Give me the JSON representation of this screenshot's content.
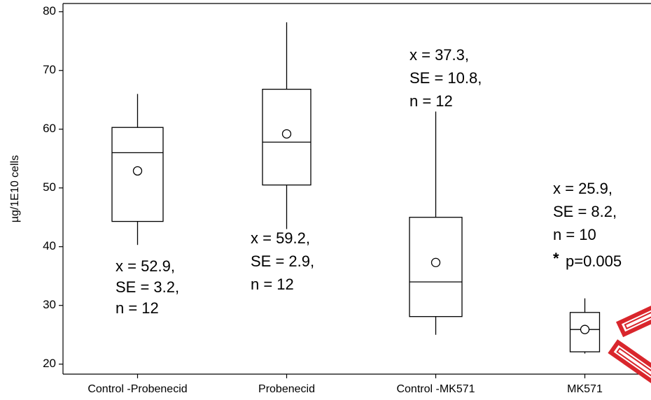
{
  "chart_data": {
    "type": "box",
    "y_label": "µg/1E10 cells",
    "categories": [
      "Control -Probenecid",
      "Probenecid",
      "Control -MK571",
      "MK571"
    ],
    "boxes": [
      {
        "whisker_low": 40.3,
        "q1": 44.3,
        "median": 56,
        "q3": 60.3,
        "whisker_high": 66,
        "mean": 52.9
      },
      {
        "whisker_low": 43,
        "q1": 50.5,
        "median": 57.8,
        "q3": 66.8,
        "whisker_high": 78.2,
        "mean": 59.2
      },
      {
        "whisker_low": 25,
        "q1": 28.1,
        "median": 34,
        "q3": 45,
        "whisker_high": 63,
        "mean": 37.3
      },
      {
        "whisker_low": 21.8,
        "q1": 22.1,
        "median": 25.9,
        "q3": 28.8,
        "whisker_high": 31.2,
        "mean": 25.9
      }
    ],
    "annotations": [
      {
        "lines": [
          "x = 52.9,",
          "SE = 3.2,",
          "n = 12"
        ]
      },
      {
        "lines": [
          "x = 59.2,",
          "SE = 2.9,",
          "n = 12"
        ]
      },
      {
        "lines": [
          "x = 37.3,",
          "SE = 10.8,",
          "n = 12"
        ]
      },
      {
        "lines": [
          "x = 25.9,",
          "SE = 8.2,",
          "n = 10"
        ],
        "star": "*",
        "p": "p=0.005"
      }
    ],
    "ylim": [
      18.3,
      81.4
    ],
    "yticks": [
      20,
      30,
      40,
      50,
      60,
      70,
      80
    ]
  }
}
